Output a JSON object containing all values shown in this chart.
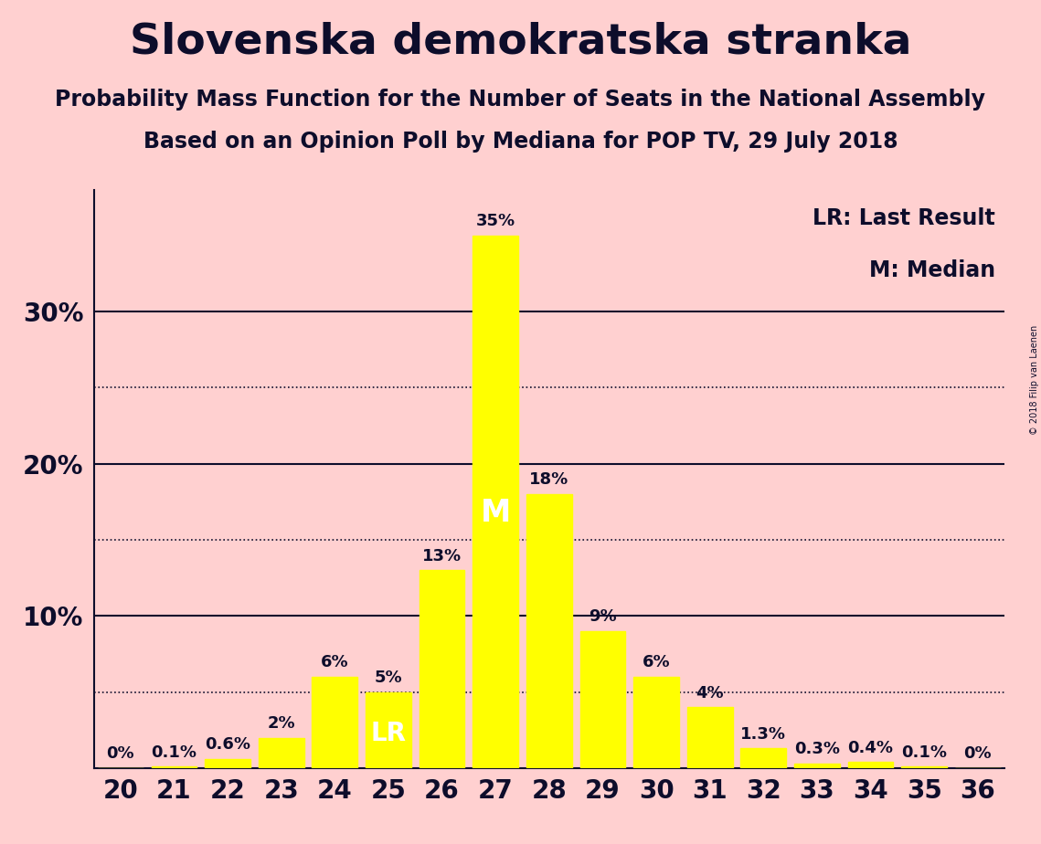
{
  "title": "Slovenska demokratska stranka",
  "subtitle1": "Probability Mass Function for the Number of Seats in the National Assembly",
  "subtitle2": "Based on an Opinion Poll by Mediana for POP TV, 29 July 2018",
  "copyright": "© 2018 Filip van Laenen",
  "seats": [
    20,
    21,
    22,
    23,
    24,
    25,
    26,
    27,
    28,
    29,
    30,
    31,
    32,
    33,
    34,
    35,
    36
  ],
  "probabilities": [
    0.0,
    0.1,
    0.6,
    2.0,
    6.0,
    5.0,
    13.0,
    35.0,
    18.0,
    9.0,
    6.0,
    4.0,
    1.3,
    0.3,
    0.4,
    0.1,
    0.0
  ],
  "bar_color": "#FFFF00",
  "background_color": "#FFD0D0",
  "text_color": "#0d0d2b",
  "median_seat": 27,
  "last_result_seat": 25,
  "legend_lr": "LR: Last Result",
  "legend_m": "M: Median",
  "solid_yticks": [
    10,
    20,
    30
  ],
  "dotted_yticks": [
    5,
    15,
    25
  ],
  "ylim": [
    0,
    38
  ],
  "xlim": [
    19.5,
    36.5
  ],
  "bar_label_fontsize": 13,
  "title_fontsize": 34,
  "subtitle_fontsize": 17,
  "axis_tick_fontsize": 20,
  "legend_fontsize": 17,
  "median_label_color": "#FFFFFF",
  "lr_label_color": "#FFFFFF",
  "median_label_fontsize": 24,
  "lr_label_fontsize": 20
}
